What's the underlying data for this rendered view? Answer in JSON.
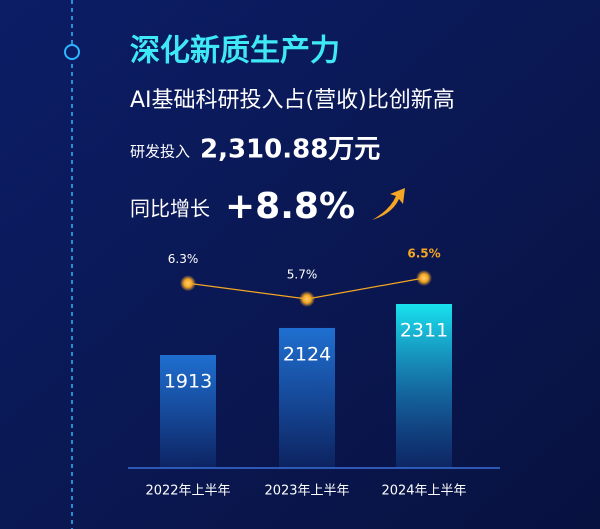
{
  "header": {
    "title": "深化新质生产力",
    "subtitle": "AI基础科研投入占(营收)比创新高"
  },
  "stats": [
    {
      "label": "研发投入",
      "value": "2,310.88万元"
    },
    {
      "label": "同比增长",
      "value": "+8.8%"
    }
  ],
  "chart_data": {
    "type": "bar",
    "categories": [
      "2022年上半年",
      "2023年上半年",
      "2024年上半年"
    ],
    "values": [
      1913,
      2124,
      2311
    ],
    "colors": [
      "#1f6fd0",
      "#1f6fd0",
      "#19e3ee"
    ],
    "line": {
      "values": [
        6.3,
        5.7,
        6.5
      ],
      "value_labels": [
        "6.3%",
        "5.7%",
        "6.5%"
      ],
      "color": "#f5a623"
    }
  }
}
